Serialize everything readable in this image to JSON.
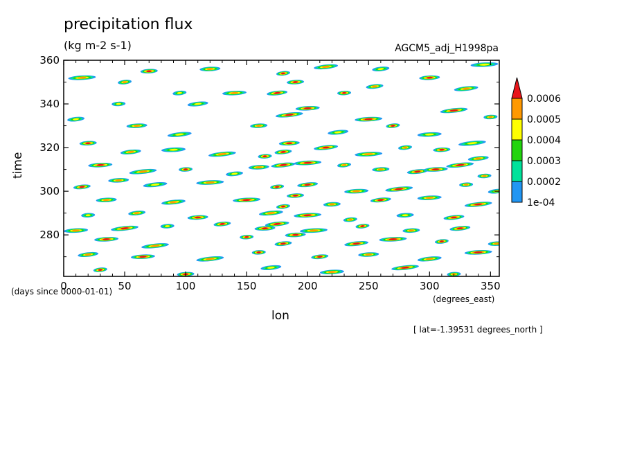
{
  "chart_data": {
    "type": "heatmap",
    "title": "precipitation flux",
    "subtitle": "(kg m-2 s-1)",
    "run_name": "AGCM5_adj_H1998pa",
    "xlabel": "lon",
    "xunits": "(degrees_east)",
    "ylabel": "time",
    "yunits": "(days since 0000-01-01)",
    "slice_note": "[ lat=-1.39531 degrees_north ]",
    "xlim": [
      0,
      357.1875
    ],
    "ylim": [
      261,
      360
    ],
    "x_ticks": [
      "0",
      "50",
      "100",
      "150",
      "200",
      "250",
      "300",
      "350"
    ],
    "x_tick_values": [
      0,
      50,
      100,
      150,
      200,
      250,
      300,
      350
    ],
    "y_ticks": [
      "280",
      "300",
      "320",
      "340",
      "360"
    ],
    "y_tick_values": [
      280,
      300,
      320,
      340,
      360
    ],
    "colorbar": {
      "labels": [
        "1e-04",
        "0.0002",
        "0.0003",
        "0.0004",
        "0.0005",
        "0.0006"
      ],
      "levels": [
        0.0001,
        0.0002,
        0.0003,
        0.0004,
        0.0005,
        0.0006
      ],
      "colors": [
        "#2196f3",
        "#00e29b",
        "#22d40e",
        "#ffff00",
        "#ff9900",
        "#e8151a"
      ],
      "extend": "max"
    },
    "features": [
      [
        180,
        354,
        0.0007
      ],
      [
        190,
        350,
        0.0006
      ],
      [
        175,
        345,
        0.0006
      ],
      [
        200,
        338,
        0.0006
      ],
      [
        185,
        335,
        0.0007
      ],
      [
        230,
        345,
        0.0006
      ],
      [
        255,
        348,
        0.0005
      ],
      [
        300,
        352,
        0.0006
      ],
      [
        330,
        347,
        0.0005
      ],
      [
        15,
        352,
        0.0005
      ],
      [
        50,
        350,
        0.0005
      ],
      [
        70,
        355,
        0.0006
      ],
      [
        110,
        340,
        0.0004
      ],
      [
        140,
        345,
        0.0005
      ],
      [
        320,
        337,
        0.0006
      ],
      [
        350,
        334,
        0.0005
      ],
      [
        10,
        333,
        0.0004
      ],
      [
        60,
        330,
        0.0005
      ],
      [
        95,
        326,
        0.0004
      ],
      [
        250,
        333,
        0.0006
      ],
      [
        270,
        330,
        0.0006
      ],
      [
        20,
        322,
        0.0006
      ],
      [
        55,
        318,
        0.0005
      ],
      [
        90,
        319,
        0.0004
      ],
      [
        130,
        317,
        0.0005
      ],
      [
        165,
        316,
        0.0006
      ],
      [
        180,
        318,
        0.0007
      ],
      [
        185,
        322,
        0.0006
      ],
      [
        215,
        320,
        0.0006
      ],
      [
        250,
        317,
        0.0005
      ],
      [
        280,
        320,
        0.0005
      ],
      [
        310,
        319,
        0.0006
      ],
      [
        340,
        315,
        0.0005
      ],
      [
        30,
        312,
        0.0006
      ],
      [
        65,
        309,
        0.0005
      ],
      [
        100,
        310,
        0.0006
      ],
      [
        140,
        308,
        0.0004
      ],
      [
        160,
        311,
        0.0005
      ],
      [
        180,
        312,
        0.0007
      ],
      [
        200,
        313,
        0.0006
      ],
      [
        230,
        312,
        0.0005
      ],
      [
        260,
        310,
        0.0005
      ],
      [
        290,
        309,
        0.0007
      ],
      [
        305,
        310,
        0.0007
      ],
      [
        325,
        312,
        0.0006
      ],
      [
        345,
        307,
        0.0005
      ],
      [
        15,
        302,
        0.0006
      ],
      [
        45,
        305,
        0.0005
      ],
      [
        75,
        303,
        0.0004
      ],
      [
        120,
        304,
        0.0005
      ],
      [
        175,
        302,
        0.0007
      ],
      [
        190,
        298,
        0.0007
      ],
      [
        200,
        303,
        0.0006
      ],
      [
        240,
        300,
        0.0005
      ],
      [
        275,
        301,
        0.0006
      ],
      [
        330,
        303,
        0.0005
      ],
      [
        355,
        300,
        0.0004
      ],
      [
        35,
        296,
        0.0005
      ],
      [
        90,
        295,
        0.0005
      ],
      [
        150,
        296,
        0.0006
      ],
      [
        180,
        293,
        0.0007
      ],
      [
        220,
        294,
        0.0005
      ],
      [
        260,
        296,
        0.0006
      ],
      [
        300,
        297,
        0.0005
      ],
      [
        340,
        294,
        0.0006
      ],
      [
        20,
        289,
        0.0004
      ],
      [
        60,
        290,
        0.0005
      ],
      [
        110,
        288,
        0.0006
      ],
      [
        170,
        290,
        0.0005
      ],
      [
        200,
        289,
        0.0006
      ],
      [
        235,
        287,
        0.0005
      ],
      [
        280,
        289,
        0.0004
      ],
      [
        320,
        288,
        0.0006
      ],
      [
        10,
        282,
        0.0005
      ],
      [
        50,
        283,
        0.0006
      ],
      [
        85,
        284,
        0.0004
      ],
      [
        130,
        285,
        0.0006
      ],
      [
        165,
        283,
        0.0007
      ],
      [
        175,
        285,
        0.0006
      ],
      [
        205,
        282,
        0.0005
      ],
      [
        245,
        284,
        0.0006
      ],
      [
        285,
        282,
        0.0005
      ],
      [
        325,
        283,
        0.0006
      ],
      [
        35,
        278,
        0.0006
      ],
      [
        75,
        275,
        0.0005
      ],
      [
        150,
        279,
        0.0006
      ],
      [
        180,
        276,
        0.0007
      ],
      [
        190,
        280,
        0.0006
      ],
      [
        240,
        276,
        0.0007
      ],
      [
        270,
        278,
        0.0006
      ],
      [
        310,
        277,
        0.0006
      ],
      [
        355,
        276,
        0.0005
      ],
      [
        20,
        271,
        0.0005
      ],
      [
        65,
        270,
        0.0006
      ],
      [
        120,
        269,
        0.0005
      ],
      [
        160,
        272,
        0.0006
      ],
      [
        210,
        270,
        0.0006
      ],
      [
        250,
        271,
        0.0005
      ],
      [
        300,
        269,
        0.0005
      ],
      [
        340,
        272,
        0.0006
      ],
      [
        30,
        264,
        0.0006
      ],
      [
        100,
        262,
        0.0006
      ],
      [
        170,
        265,
        0.0004
      ],
      [
        220,
        263,
        0.0005
      ],
      [
        280,
        265,
        0.0006
      ],
      [
        320,
        262,
        0.0005
      ],
      [
        260,
        356,
        0.0004
      ],
      [
        120,
        356,
        0.0005
      ],
      [
        215,
        357,
        0.0005
      ],
      [
        345,
        358,
        0.0004
      ],
      [
        95,
        345,
        0.0004
      ],
      [
        160,
        330,
        0.0005
      ],
      [
        225,
        327,
        0.0004
      ],
      [
        300,
        326,
        0.0004
      ],
      [
        335,
        322,
        0.0004
      ],
      [
        45,
        340,
        0.0004
      ]
    ]
  }
}
